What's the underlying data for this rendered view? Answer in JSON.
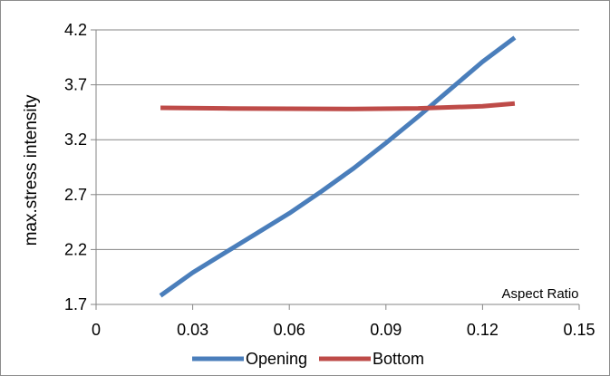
{
  "chart_data": {
    "type": "line",
    "title": "",
    "xlabel": "",
    "ylabel": "max.stress intensity",
    "annotation": "Aspect Ratio",
    "xlim": [
      0,
      0.15
    ],
    "ylim": [
      1.7,
      4.2
    ],
    "x_ticks": [
      "0",
      "0.03",
      "0.06",
      "0.09",
      "0.12",
      "0.15"
    ],
    "y_ticks": [
      "1.7",
      "2.2",
      "2.7",
      "3.2",
      "3.7",
      "4.2"
    ],
    "grid": "horizontal",
    "legend_position": "bottom",
    "series": [
      {
        "name": "Opening",
        "color": "#4a7ebb",
        "x": [
          0.02,
          0.03,
          0.04,
          0.05,
          0.06,
          0.07,
          0.08,
          0.09,
          0.1,
          0.11,
          0.12,
          0.13
        ],
        "y": [
          1.78,
          1.99,
          2.17,
          2.35,
          2.53,
          2.73,
          2.94,
          3.17,
          3.41,
          3.66,
          3.91,
          4.13
        ]
      },
      {
        "name": "Bottom",
        "color": "#be4b48",
        "x": [
          0.02,
          0.04,
          0.06,
          0.08,
          0.1,
          0.12,
          0.13
        ],
        "y": [
          3.49,
          3.485,
          3.482,
          3.48,
          3.485,
          3.505,
          3.53
        ]
      }
    ]
  }
}
